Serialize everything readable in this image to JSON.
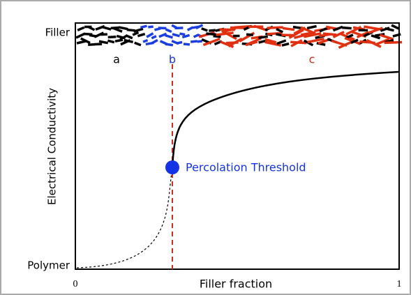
{
  "diagram": {
    "y_axis_label": "Electrical Conductivity",
    "x_axis_label": "Filler fraction",
    "top_label": "Filler",
    "bottom_label": "Polymer",
    "x_start": "0",
    "x_end": "1",
    "regions": [
      "a",
      "b",
      "c"
    ],
    "threshold_label": "Percolation Threshold"
  }
}
